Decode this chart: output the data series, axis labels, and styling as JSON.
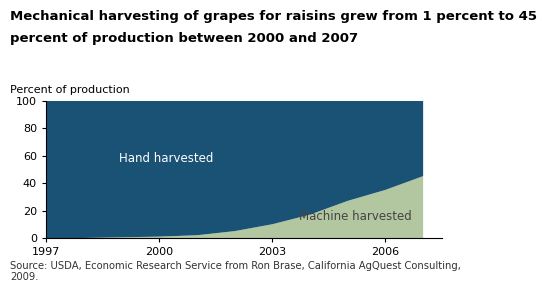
{
  "title_line1": "Mechanical harvesting of grapes for raisins grew from 1 percent to 45",
  "title_line2": "percent of production between 2000 and 2007",
  "ylabel": "Percent of production",
  "source": "Source: USDA, Economic Research Service from Ron Brase, California AgQuest Consulting,\n2009.",
  "years": [
    1997,
    1998,
    1999,
    2000,
    2001,
    2002,
    2003,
    2004,
    2005,
    2006,
    2007
  ],
  "machine_harvested": [
    0,
    0,
    0.5,
    1,
    2,
    5,
    10,
    17,
    27,
    35,
    45
  ],
  "hand_harvested": [
    100,
    100,
    99.5,
    99,
    98,
    95,
    90,
    83,
    73,
    65,
    55
  ],
  "hand_color": "#1a5276",
  "machine_color": "#b2c6a0",
  "hand_label": "Hand harvested",
  "machine_label": "Machine harvested",
  "ylim": [
    0,
    100
  ],
  "xlim": [
    1997,
    2007.5
  ],
  "yticks": [
    0,
    20,
    40,
    60,
    80,
    100
  ],
  "xticks": [
    1997,
    2000,
    2003,
    2006
  ],
  "title_fontsize": 9.5,
  "ylabel_fontsize": 8.0,
  "label_fontsize": 8.5,
  "tick_fontsize": 8.0,
  "source_fontsize": 7.2
}
